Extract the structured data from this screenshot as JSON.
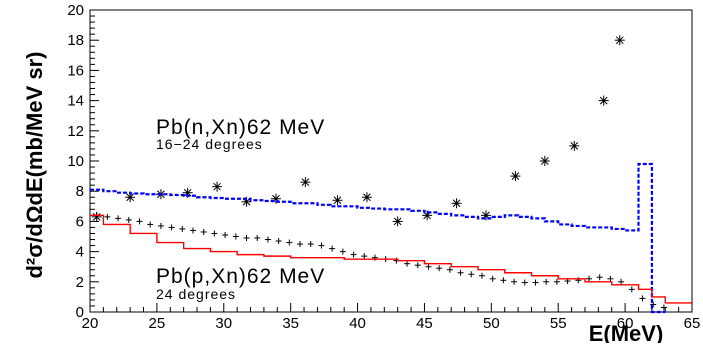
{
  "chart_data": {
    "type": "line",
    "xlabel": "E(MeV)",
    "ylabel": "d²σ/dΩdE(mb/MeV sr)",
    "xlim": [
      20,
      65
    ],
    "ylim": [
      0,
      20
    ],
    "x_ticks": [
      "20",
      "25",
      "30",
      "35",
      "40",
      "45",
      "50",
      "55",
      "60",
      "65"
    ],
    "y_ticks": [
      "0",
      "2",
      "4",
      "6",
      "8",
      "10",
      "12",
      "14",
      "16",
      "18",
      "20"
    ],
    "grid": false,
    "annotations": [
      {
        "title": "Pb(n,Xn)62 MeV",
        "subtitle": "16−24 degrees"
      },
      {
        "title": "Pb(p,Xn)62 MeV",
        "subtitle": "24 degrees"
      }
    ],
    "series": [
      {
        "marker": "asterisk",
        "color": "#000000",
        "x": [
          20.5,
          23.0,
          25.3,
          27.3,
          29.5,
          31.7,
          33.9,
          36.1,
          38.5,
          40.7,
          43.0,
          45.2,
          47.4,
          49.6,
          51.8,
          54.0,
          56.2,
          58.4,
          59.6
        ],
        "y": [
          6.3,
          7.6,
          7.8,
          7.9,
          8.3,
          7.3,
          7.5,
          8.6,
          7.4,
          7.6,
          6.0,
          6.4,
          7.2,
          6.4,
          9.0,
          10.0,
          11.0,
          14.0,
          18.0
        ]
      },
      {
        "marker": "plus",
        "color": "#000000",
        "x": [
          20.5,
          21.3,
          22.1,
          22.9,
          23.7,
          24.5,
          25.3,
          26.1,
          26.9,
          27.7,
          28.5,
          29.3,
          30.1,
          30.9,
          31.7,
          32.5,
          33.3,
          34.1,
          34.9,
          35.7,
          36.5,
          37.3,
          38.1,
          38.9,
          39.7,
          40.5,
          41.3,
          42.1,
          42.9,
          43.7,
          44.5,
          45.3,
          46.1,
          46.9,
          47.7,
          48.5,
          49.3,
          50.1,
          50.9,
          51.7,
          52.5,
          53.3,
          54.1,
          54.9,
          55.7,
          56.5,
          57.3,
          58.1,
          58.9,
          59.7,
          60.5,
          61.3,
          62.1,
          62.9
        ],
        "y": [
          6.4,
          6.3,
          6.2,
          6.1,
          6.0,
          5.8,
          5.7,
          5.6,
          5.5,
          5.4,
          5.3,
          5.2,
          5.1,
          5.0,
          4.9,
          4.9,
          4.8,
          4.7,
          4.6,
          4.5,
          4.5,
          4.4,
          4.2,
          4.0,
          3.8,
          3.7,
          3.6,
          3.5,
          3.4,
          3.2,
          3.1,
          3.0,
          2.9,
          2.8,
          2.6,
          2.5,
          2.4,
          2.2,
          2.1,
          2.0,
          1.95,
          1.95,
          2.0,
          2.0,
          2.05,
          2.1,
          2.2,
          2.3,
          2.2,
          2.0,
          1.5,
          0.9,
          0.5,
          0.3
        ]
      },
      {
        "line": "dashed-step",
        "color": "#0000ff",
        "x": [
          20,
          21,
          22,
          23,
          24,
          25,
          26,
          27,
          28,
          29,
          30,
          31,
          32,
          33,
          34,
          35,
          36,
          37,
          38,
          39,
          40,
          41,
          42,
          43,
          44,
          45,
          46,
          47,
          48,
          49,
          50,
          51,
          52,
          53,
          54,
          55,
          56,
          57,
          58,
          59,
          60,
          61,
          62,
          63
        ],
        "y": [
          8.1,
          8.0,
          7.9,
          7.85,
          7.8,
          7.8,
          7.75,
          7.7,
          7.6,
          7.55,
          7.5,
          7.5,
          7.4,
          7.35,
          7.3,
          7.2,
          7.2,
          7.1,
          7.0,
          7.0,
          6.9,
          6.85,
          6.8,
          6.8,
          6.7,
          6.6,
          6.5,
          6.4,
          6.3,
          6.2,
          6.3,
          6.4,
          6.3,
          6.2,
          6.0,
          5.8,
          5.7,
          5.6,
          5.6,
          5.5,
          5.4,
          9.8,
          0.0,
          0.0
        ]
      },
      {
        "line": "solid-step",
        "color": "#ff0000",
        "x": [
          20,
          21,
          23,
          25,
          27,
          29,
          31,
          33,
          35,
          37,
          39,
          41,
          43,
          45,
          47,
          49,
          51,
          53,
          55,
          57,
          59,
          61,
          62,
          63,
          65
        ],
        "y": [
          6.4,
          5.8,
          5.2,
          4.6,
          4.2,
          4.0,
          3.8,
          3.7,
          3.6,
          3.6,
          3.5,
          3.5,
          3.4,
          3.2,
          3.0,
          2.8,
          2.6,
          2.4,
          2.2,
          2.0,
          1.8,
          1.5,
          1.0,
          0.6,
          0.6
        ]
      }
    ]
  }
}
